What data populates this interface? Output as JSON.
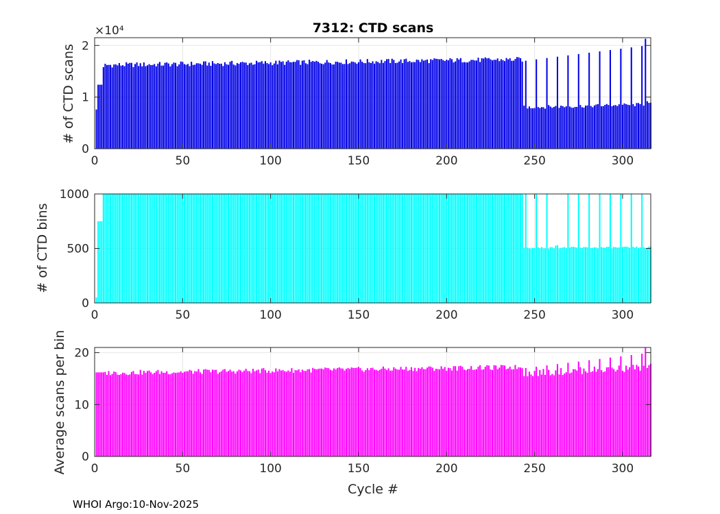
{
  "figure_title": "7312: CTD scans",
  "footer": "WHOI Argo:10-Nov-2025",
  "colors": {
    "scans": "#0000e6",
    "bins": "#00ffff",
    "avg": "#ff00ff",
    "axis": "#262626",
    "grid": "#e6e6e6"
  },
  "chart_data": [
    {
      "type": "bar",
      "title": "7312: CTD scans",
      "xlabel": "",
      "ylabel": "# of CTD scans",
      "xlim": [
        0,
        316
      ],
      "ylim": [
        0,
        21500
      ],
      "xticks": [
        0,
        50,
        100,
        150,
        200,
        250,
        300
      ],
      "yticks": [
        0,
        10000,
        20000
      ],
      "ytick_labels": [
        "0",
        "1",
        "2"
      ],
      "exponent_label": "×10⁴",
      "grid": true,
      "series": [
        {
          "name": "# of CTD scans",
          "pattern": [
            {
              "from": 1,
              "to": 1,
              "value": 7600
            },
            {
              "from": 2,
              "to": 4,
              "value": 12400
            },
            {
              "from": 5,
              "to": 5,
              "value": 15800
            },
            {
              "from": 6,
              "to": 243,
              "value_start": 16200,
              "value_end": 17300,
              "jitter": 500
            },
            {
              "from": 244,
              "to": 316,
              "value_start": 8000,
              "value_end": 8600,
              "jitter": 350,
              "every": 6,
              "every_value_start": 17000,
              "every_value_end": 20100
            }
          ],
          "overrides": [
            {
              "x": 313,
              "value": 21300
            },
            {
              "x": 314,
              "value": 9200
            }
          ]
        }
      ]
    },
    {
      "type": "bar",
      "title": "",
      "xlabel": "",
      "ylabel": "# of CTD bins",
      "xlim": [
        0,
        316
      ],
      "ylim": [
        0,
        1000
      ],
      "xticks": [
        0,
        50,
        100,
        150,
        200,
        250,
        300
      ],
      "yticks": [
        0,
        500,
        1000
      ],
      "ytick_labels": [
        "0",
        "500",
        "1000"
      ],
      "grid": true,
      "series": [
        {
          "name": "# of CTD bins",
          "pattern": [
            {
              "from": 1,
              "to": 1,
              "value": 50
            },
            {
              "from": 2,
              "to": 4,
              "value": 750
            },
            {
              "from": 5,
              "to": 243,
              "value": 1000
            },
            {
              "from": 244,
              "to": 316,
              "value_start": 505,
              "value_end": 510,
              "jitter": 8,
              "every": 6,
              "every_value_start": 1000,
              "every_value_end": 1000
            }
          ],
          "overrides": [
            {
              "x": 262,
              "value": 525
            },
            {
              "x": 263,
              "value": 530
            }
          ]
        }
      ]
    },
    {
      "type": "bar",
      "title": "",
      "xlabel": "Cycle #",
      "ylabel": "Average scans per bin",
      "xlim": [
        0,
        316
      ],
      "ylim": [
        0,
        21
      ],
      "xticks": [
        0,
        50,
        100,
        150,
        200,
        250,
        300
      ],
      "yticks": [
        0,
        10,
        20
      ],
      "ytick_labels": [
        "0",
        "10",
        "20"
      ],
      "grid": true,
      "series": [
        {
          "name": "Average scans per bin",
          "pattern": [
            {
              "from": 1,
              "to": 5,
              "value": 16.2
            },
            {
              "from": 6,
              "to": 243,
              "value_start": 16.1,
              "value_end": 17.2,
              "jitter": 0.5
            },
            {
              "from": 244,
              "to": 316,
              "value_start": 16.0,
              "value_end": 17.2,
              "jitter": 0.7,
              "every": 6,
              "every_value_start": 17.0,
              "every_value_end": 20.0
            }
          ],
          "overrides": [
            {
              "x": 313,
              "value": 21.0
            }
          ]
        }
      ]
    }
  ]
}
